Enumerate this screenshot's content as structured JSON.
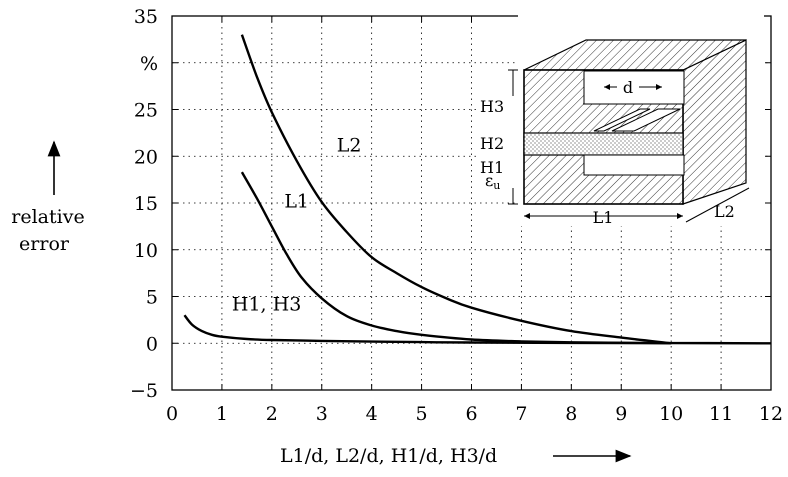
{
  "chart_data": {
    "type": "line",
    "title": "",
    "xlabel": "L1/d,  L2/d,  H1/d,  H3/d",
    "ylabel": "relative error",
    "ylabel_lines": [
      "relative",
      "error"
    ],
    "y_unit": "%",
    "xlim": [
      0,
      12
    ],
    "ylim": [
      -5,
      35
    ],
    "x_ticks": [
      0,
      1,
      2,
      3,
      4,
      5,
      6,
      7,
      8,
      9,
      10,
      11,
      12
    ],
    "y_ticks": [
      -5,
      0,
      5,
      10,
      15,
      20,
      25,
      30,
      35
    ],
    "y_tick_labels": [
      "−5",
      "0",
      "5",
      "10",
      "15",
      "20",
      "25",
      "%",
      "35"
    ],
    "grid": true,
    "series": [
      {
        "name": "L2",
        "x": [
          1.4,
          1.7,
          2,
          2.5,
          3,
          3.5,
          4,
          4.5,
          5,
          5.5,
          6,
          7,
          8,
          9,
          10
        ],
        "y": [
          33,
          28.5,
          24.7,
          19.5,
          15.1,
          11.9,
          9.2,
          7.5,
          6.0,
          4.8,
          3.8,
          2.4,
          1.3,
          0.6,
          0
        ]
      },
      {
        "name": "L1",
        "x": [
          1.4,
          1.7,
          2,
          2.3,
          2.6,
          3,
          3.5,
          4,
          4.5,
          5,
          6,
          7,
          8,
          9,
          10
        ],
        "y": [
          18.3,
          15.5,
          12.5,
          9.5,
          7.0,
          4.8,
          2.9,
          1.9,
          1.3,
          0.9,
          0.4,
          0.2,
          0.1,
          0.05,
          0
        ]
      },
      {
        "name": "H1, H3",
        "x": [
          0.25,
          0.4,
          0.6,
          0.8,
          1.0,
          1.5,
          2,
          3,
          4,
          5,
          6,
          8,
          10,
          12
        ],
        "y": [
          3.0,
          2.0,
          1.3,
          0.9,
          0.7,
          0.45,
          0.35,
          0.25,
          0.18,
          0.12,
          0.08,
          0.04,
          0.02,
          0
        ]
      }
    ]
  },
  "inset": {
    "labels": {
      "d": "d",
      "H3": "H3",
      "H2": "H2",
      "H1": "H1",
      "eps": "ε",
      "eps_sub": "u",
      "L1": "L1",
      "L2": "L2"
    }
  }
}
